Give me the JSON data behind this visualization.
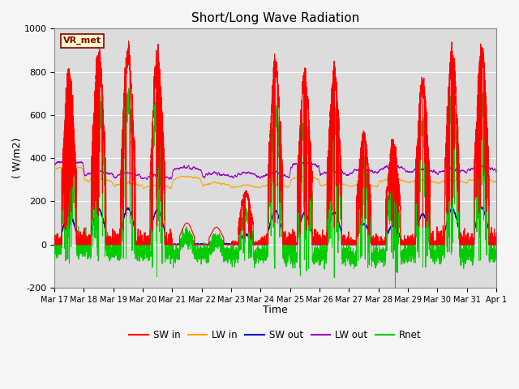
{
  "title": "Short/Long Wave Radiation",
  "xlabel": "Time",
  "ylabel": "( W/m2)",
  "ylim": [
    -200,
    1000
  ],
  "xlim": [
    0,
    15
  ],
  "x_tick_labels": [
    "Mar 17",
    "Mar 18",
    "Mar 19",
    "Mar 20",
    "Mar 21",
    "Mar 22",
    "Mar 23",
    "Mar 24",
    "Mar 25",
    "Mar 26",
    "Mar 27",
    "Mar 28",
    "Mar 29",
    "Mar 30",
    "Mar 31",
    "Apr 1"
  ],
  "station_label": "VR_met",
  "colors": {
    "SW_in": "#ff0000",
    "LW_in": "#ffa500",
    "SW_out": "#0000cc",
    "LW_out": "#9900cc",
    "Rnet": "#00cc00"
  },
  "legend_labels": [
    "SW in",
    "LW in",
    "SW out",
    "LW out",
    "Rnet"
  ],
  "bg_color": "#dcdcdc",
  "fig_bg": "#f5f5f5",
  "grid_color": "#ffffff",
  "peaks_sw": [
    780,
    870,
    880,
    850,
    100,
    80,
    240,
    820,
    770,
    780,
    500,
    470,
    740,
    870,
    900
  ],
  "lw_in_base": [
    350,
    290,
    270,
    260,
    300,
    270,
    260,
    265,
    300,
    270,
    265,
    290,
    285,
    285,
    290
  ],
  "lw_out_base": [
    370,
    320,
    310,
    300,
    340,
    310,
    310,
    310,
    360,
    320,
    330,
    340,
    330,
    330,
    340
  ],
  "rnet_night": -60,
  "rnet_extreme_day": 11
}
